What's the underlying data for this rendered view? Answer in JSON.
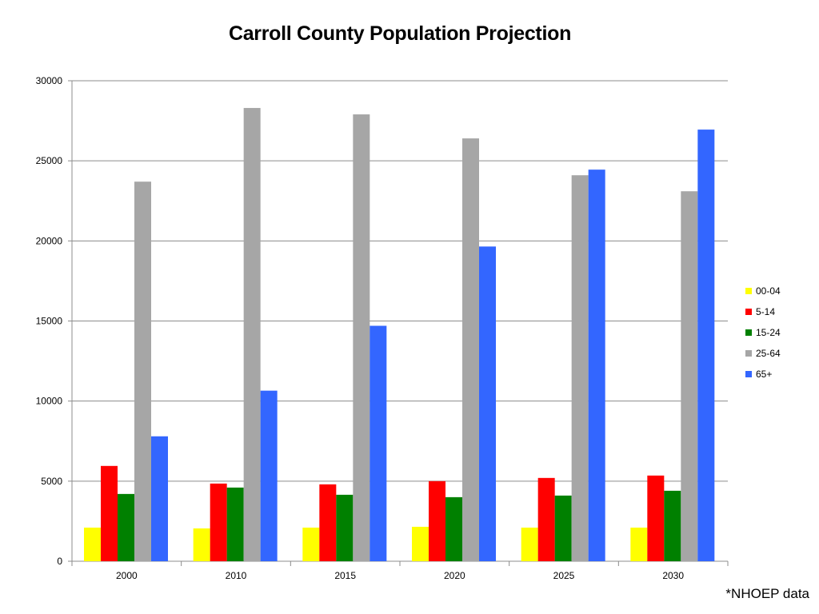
{
  "chart_data": {
    "type": "bar",
    "title": "Carroll County Population Projection",
    "xlabel": "",
    "ylabel": "",
    "categories": [
      "2000",
      "2010",
      "2015",
      "2020",
      "2025",
      "2030"
    ],
    "series": [
      {
        "name": "00-04",
        "color": "#ffff00",
        "values": [
          2100,
          2050,
          2100,
          2150,
          2100,
          2100
        ]
      },
      {
        "name": "5-14",
        "color": "#ff0000",
        "values": [
          5950,
          4850,
          4800,
          5000,
          5200,
          5350
        ]
      },
      {
        "name": "15-24",
        "color": "#008000",
        "values": [
          4200,
          4600,
          4150,
          4000,
          4100,
          4400
        ]
      },
      {
        "name": "25-64",
        "color": "#a6a6a6",
        "values": [
          23700,
          28300,
          27900,
          26400,
          24100,
          23100
        ]
      },
      {
        "name": "65+",
        "color": "#3366ff",
        "values": [
          7800,
          10650,
          14700,
          19650,
          24450,
          26950
        ]
      }
    ],
    "ylim": [
      0,
      30000
    ],
    "yticks": [
      0,
      5000,
      10000,
      15000,
      20000,
      25000,
      30000
    ],
    "grid": true,
    "legend_position": "right"
  },
  "note": "*NHOEP data"
}
